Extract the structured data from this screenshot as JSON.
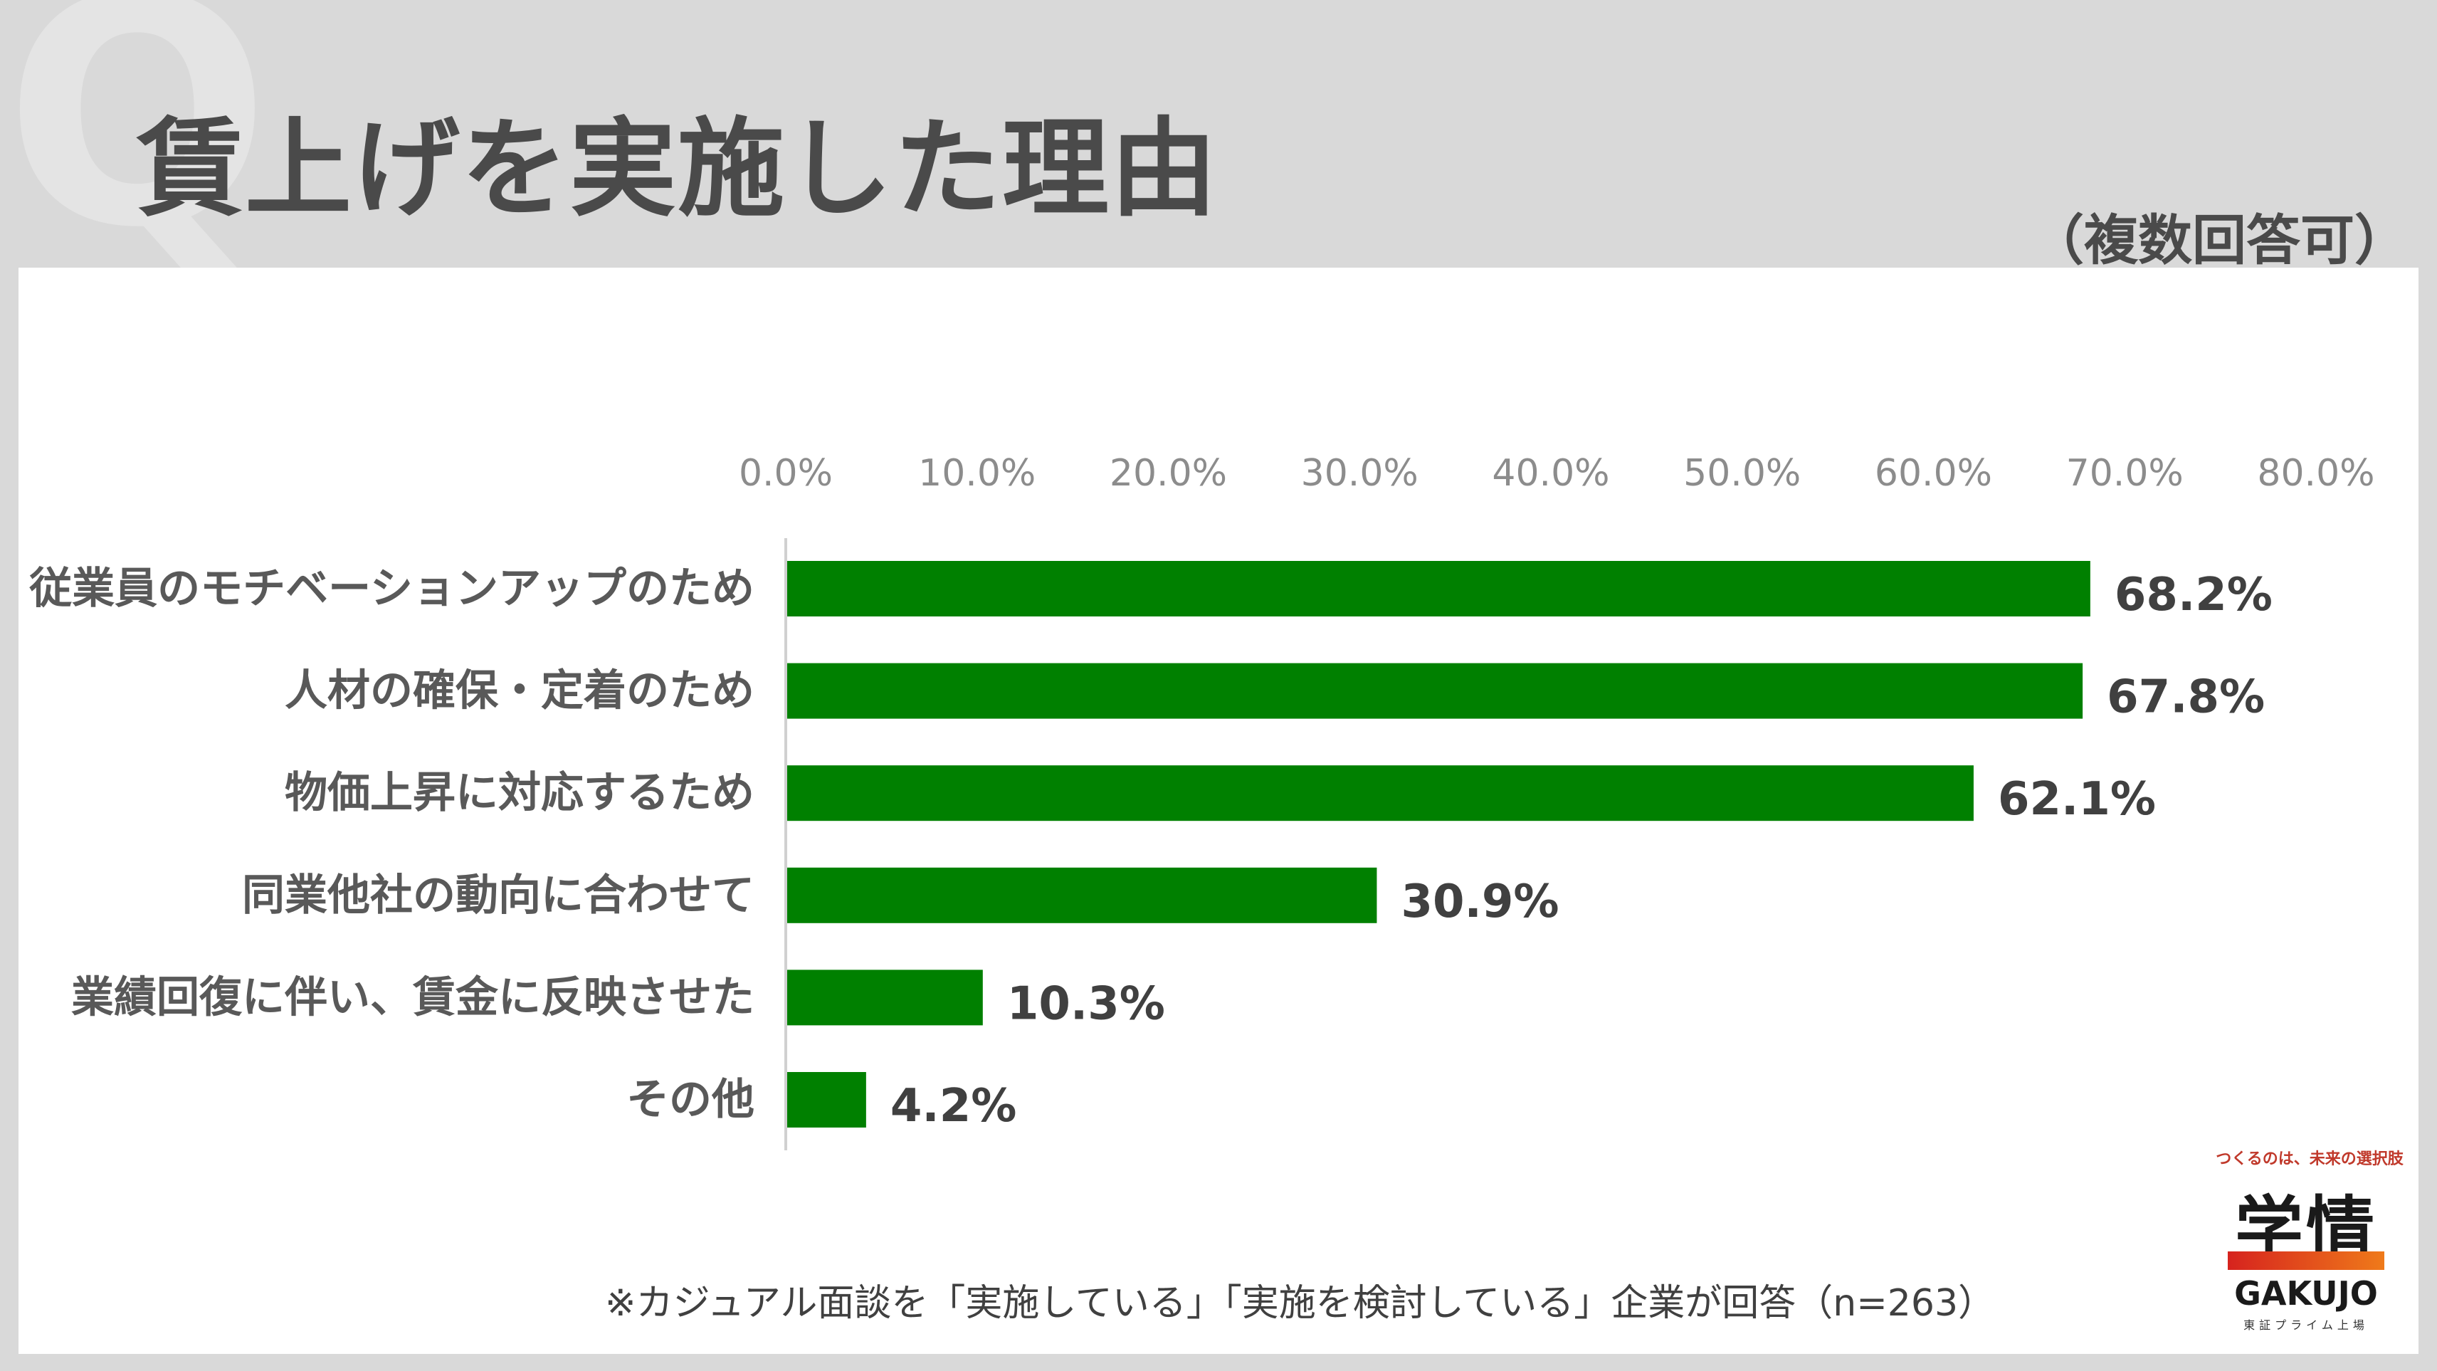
{
  "header": {
    "q_mark": "Q",
    "title": "賃上げを実施した理由",
    "subtitle": "（複数回答可）"
  },
  "chart_data": {
    "type": "bar",
    "orientation": "horizontal",
    "categories": [
      "従業員のモチベーションアップのため",
      "人材の確保・定着のため",
      "物価上昇に対応するため",
      "同業他社の動向に合わせて",
      "業績回復に伴い、賃金に反映させた",
      "その他"
    ],
    "values": [
      68.2,
      67.8,
      62.1,
      30.9,
      10.3,
      4.2
    ],
    "value_labels": [
      "68.2%",
      "67.8%",
      "62.1%",
      "30.9%",
      "10.3%",
      "4.2%"
    ],
    "xlim": [
      0,
      80
    ],
    "xticks": [
      0,
      10,
      20,
      30,
      40,
      50,
      60,
      70,
      80
    ],
    "xtick_labels": [
      "0.0%",
      "10.0%",
      "20.0%",
      "30.0%",
      "40.0%",
      "50.0%",
      "60.0%",
      "70.0%",
      "80.0%"
    ],
    "axis_position": "top",
    "grid": false,
    "bar_color": "#008000"
  },
  "footnote": "※カジュアル面談を「実施している」「実施を検討している」企業が回答（n=263）",
  "logo": {
    "tagline": "つくるのは、未来の選択肢",
    "mark": "学情",
    "name": "GAKUJO",
    "sub": "東証プライム上場",
    "accent": "#e0301e"
  }
}
